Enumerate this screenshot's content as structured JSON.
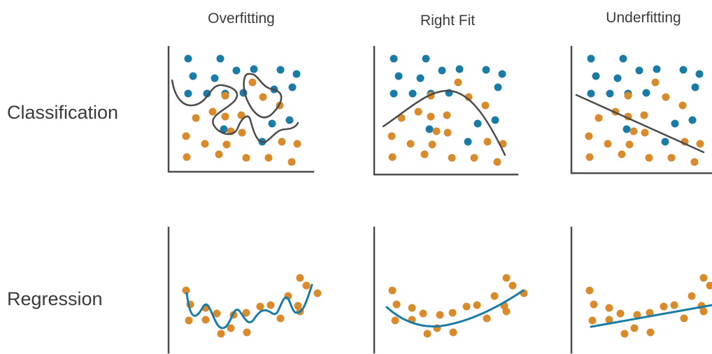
{
  "columns": [
    "Overfitting",
    "Right Fit",
    "Underfitting"
  ],
  "rows": [
    "Classification",
    "Regression"
  ],
  "colors": {
    "blue": "#1a7ba6",
    "orange": "#d98a2b",
    "axis": "#4a4a4a",
    "text": "#3a3a3a"
  }
}
